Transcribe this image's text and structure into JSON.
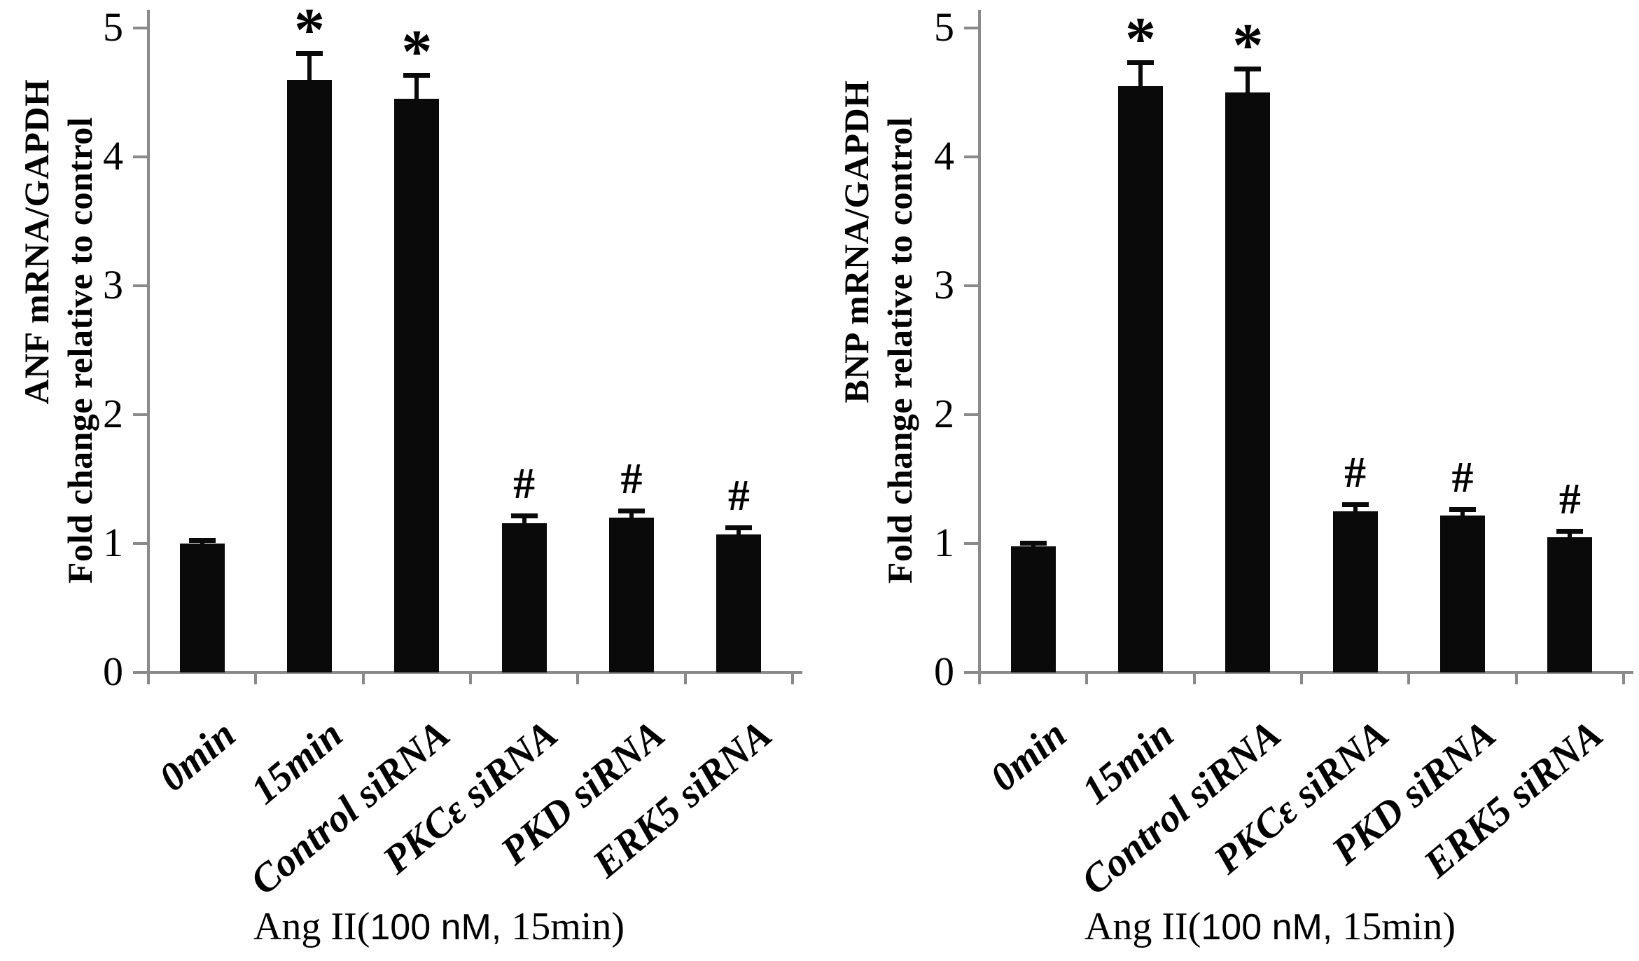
{
  "figure": {
    "background_color": "#ffffff",
    "bar_color": "#0a0a0a",
    "axis_color": "#8a8a8a",
    "text_color": "#000000"
  },
  "chart_data": [
    {
      "type": "bar",
      "panel": "left",
      "ylabel_line1": "ANF mRNA/GAPDH",
      "ylabel_line2": "Fold change relative to control",
      "xlabel": "Ang II(100 nM, 15min)",
      "xlabel_parts": [
        "Ang II(",
        "100 nM,",
        " 15min)"
      ],
      "categories": [
        "0min",
        "15min",
        "Control siRNA",
        "PKCε siRNA",
        "PKD siRNA",
        "ERK5 siRNA"
      ],
      "values": [
        1.0,
        4.6,
        4.45,
        1.16,
        1.2,
        1.07
      ],
      "errors": [
        0.02,
        0.2,
        0.18,
        0.05,
        0.05,
        0.05
      ],
      "significance": [
        "",
        "*",
        "*",
        "#",
        "#",
        "#"
      ],
      "yticks": [
        0,
        1,
        2,
        3,
        4,
        5
      ],
      "ylim": [
        0,
        5
      ],
      "grid": false,
      "legend": null
    },
    {
      "type": "bar",
      "panel": "right",
      "ylabel_line1": "BNP mRNA/GAPDH",
      "ylabel_line2": "Fold change relative to control",
      "xlabel": "Ang II(100 nM, 15min)",
      "xlabel_parts": [
        "Ang II(",
        "100 nM,",
        " 15min)"
      ],
      "categories": [
        "0min",
        "15min",
        "Control siRNA",
        "PKCε siRNA",
        "PKD siRNA",
        "ERK5 siRNA"
      ],
      "values": [
        0.98,
        4.55,
        4.5,
        1.25,
        1.22,
        1.05
      ],
      "errors": [
        0.02,
        0.18,
        0.18,
        0.05,
        0.04,
        0.04
      ],
      "significance": [
        "",
        "*",
        "*",
        "#",
        "#",
        "#"
      ],
      "yticks": [
        0,
        1,
        2,
        3,
        4,
        5
      ],
      "ylim": [
        0,
        5
      ],
      "grid": false,
      "legend": null
    }
  ]
}
